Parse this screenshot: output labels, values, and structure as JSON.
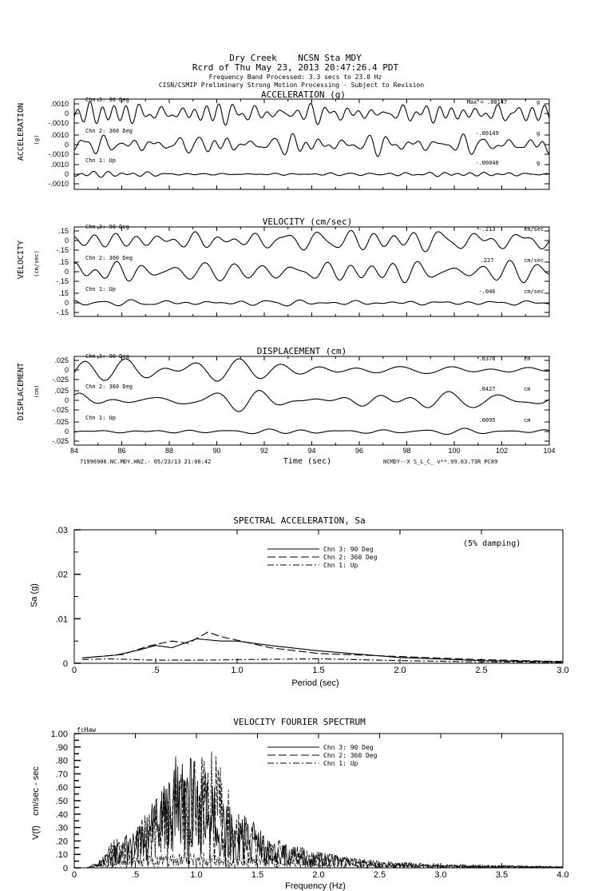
{
  "header": {
    "line1": "Dry Creek    NCSN Sta MDY",
    "line2": "Rcrd of Thu May 23, 2013 20:47:26.4 PDT",
    "line3": "Frequency Band Processed: 3.3 secs to 23.0 Hz",
    "line4": "CISN/CSMIP Preliminary Strong Motion Processing - Subject to Revision"
  },
  "channels": [
    "Chn 3: 90 Deg",
    "Chn 2: 360 Deg",
    "Chn 1: Up"
  ],
  "time_panels": {
    "acceleration": {
      "title": "ACCELERATION (g)",
      "side_label": "ACCELERATION",
      "unit_label": "(g)",
      "ticks": [
        ".0010",
        "0",
        "-.0010"
      ],
      "unit": "g",
      "peaks": [
        "Max = .00147",
        "-.00149",
        "-.00040"
      ]
    },
    "velocity": {
      "title": "VELOCITY (cm/sec)",
      "side_label": "VELOCITY",
      "unit_label": "(cm/sec)",
      "ticks": [
        ".15",
        "0",
        "-.15"
      ],
      "unit": "cm/sec",
      "peaks": [
        "-.213",
        ".227",
        "-.046"
      ]
    },
    "displacement": {
      "title": "DISPLACEMENT (cm)",
      "side_label": "DISPLACEMENT",
      "unit_label": "(cm)",
      "ticks": [
        ".025",
        "0",
        "-.025"
      ],
      "unit": "cm",
      "peaks": [
        ".0378",
        ".0427",
        ".0095"
      ]
    },
    "time_ticks": [
      "84",
      "86",
      "88",
      "90",
      "92",
      "94",
      "96",
      "98",
      "100",
      "102",
      "104"
    ],
    "time_range": [
      84,
      104
    ],
    "xlabel": "Time (sec)",
    "footer_left": "71996906.NC.MDY.HNZ.- 05/23/13 21:06:42",
    "footer_right": "NCMDY--X  S_L_C_  v**.99.63.73R PC89"
  },
  "chart_data": [
    {
      "type": "line",
      "title": "SPECTRAL ACCELERATION, Sa",
      "xlabel": "Period (sec)",
      "ylabel": "Sa (g)",
      "xlim": [
        0,
        3.0
      ],
      "ylim": [
        0,
        0.03
      ],
      "xticks": [
        "0",
        ".5",
        "1.0",
        "1.5",
        "2.0",
        "2.5",
        "3.0"
      ],
      "yticks": [
        "0",
        ".01",
        ".02",
        ".03"
      ],
      "annotation": "(5% damping)",
      "legend_placement": "top-center",
      "series": [
        {
          "name": "Chn 3: 90 Deg",
          "style": "solid",
          "x": [
            0.05,
            0.25,
            0.4,
            0.5,
            0.6,
            0.75,
            0.9,
            1.0,
            1.2,
            1.5,
            2.0,
            2.5,
            3.0
          ],
          "y": [
            0.0012,
            0.0018,
            0.003,
            0.004,
            0.0035,
            0.0055,
            0.005,
            0.005,
            0.004,
            0.0028,
            0.0013,
            0.0006,
            0.0003
          ]
        },
        {
          "name": "Chn 2: 360 Deg",
          "style": "dashed",
          "x": [
            0.05,
            0.3,
            0.45,
            0.6,
            0.7,
            0.82,
            0.9,
            1.0,
            1.2,
            1.5,
            2.0,
            2.5,
            3.0
          ],
          "y": [
            0.0012,
            0.002,
            0.0038,
            0.005,
            0.0045,
            0.007,
            0.006,
            0.0052,
            0.0035,
            0.0022,
            0.0015,
            0.0008,
            0.0004
          ]
        },
        {
          "name": "Chn 1: Up",
          "style": "dashdot",
          "x": [
            0.05,
            0.2,
            0.5,
            0.8,
            1.0,
            1.5,
            2.0,
            2.5,
            3.0
          ],
          "y": [
            0.0008,
            0.001,
            0.0007,
            0.0007,
            0.0008,
            0.001,
            0.0006,
            0.0003,
            0.0002
          ]
        }
      ]
    },
    {
      "type": "line",
      "title": "VELOCITY FOURIER SPECTRUM",
      "xlabel": "Frequency (Hz)",
      "ylabel": "V(f)    cm/sec - sec",
      "corner_label": "fcHaw",
      "xlim": [
        0,
        4.0
      ],
      "ylim": [
        0,
        1.0
      ],
      "xticks": [
        "0",
        ".5",
        "1.0",
        "1.5",
        "2.0",
        "2.5",
        "3.0",
        "3.5",
        "4.0"
      ],
      "yticks": [
        "0",
        ".10",
        ".20",
        ".30",
        ".40",
        ".50",
        ".60",
        ".70",
        ".80",
        ".90",
        "1.00"
      ],
      "legend_placement": "top-center",
      "series": [
        {
          "name": "Chn 3: 90 Deg",
          "style": "solid",
          "envelope_x": [
            0.1,
            0.2,
            0.3,
            0.5,
            0.7,
            0.85,
            1.0,
            1.2,
            1.4,
            1.6,
            2.0,
            2.5,
            3.0,
            4.0
          ],
          "envelope_y": [
            0,
            0.05,
            0.15,
            0.3,
            0.6,
            0.87,
            0.8,
            0.6,
            0.45,
            0.2,
            0.12,
            0.04,
            0.02,
            0.01
          ]
        },
        {
          "name": "Chn 2: 360 Deg",
          "style": "dashed",
          "envelope_x": [
            0.1,
            0.2,
            0.3,
            0.5,
            0.7,
            0.9,
            1.15,
            1.3,
            1.5,
            1.7,
            2.0,
            2.5,
            3.0,
            4.0
          ],
          "envelope_y": [
            0,
            0.04,
            0.2,
            0.3,
            0.55,
            0.85,
            0.88,
            0.5,
            0.3,
            0.2,
            0.12,
            0.05,
            0.03,
            0.01
          ]
        },
        {
          "name": "Chn 1: Up",
          "style": "dashdot",
          "envelope_x": [
            0.1,
            0.3,
            0.6,
            1.0,
            1.5,
            2.0,
            3.0,
            4.0
          ],
          "envelope_y": [
            0,
            0.05,
            0.1,
            0.12,
            0.08,
            0.04,
            0.02,
            0.01
          ]
        }
      ]
    }
  ]
}
